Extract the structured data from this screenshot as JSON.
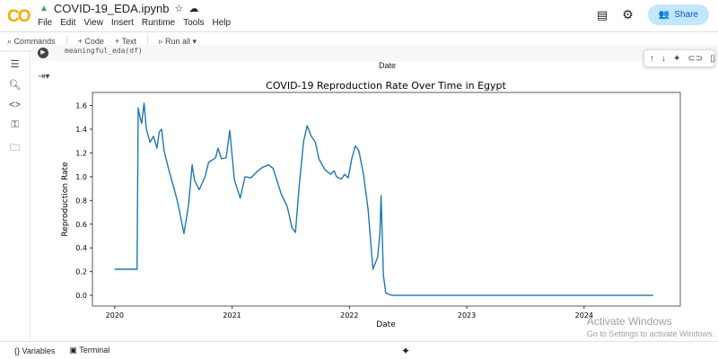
{
  "app": {
    "logo": "CO",
    "file_name": "COVID-19_EDA.ipynb",
    "star_icon": "star-icon",
    "cloud_icon": "cloud-icon"
  },
  "menu": [
    "File",
    "Edit",
    "View",
    "Insert",
    "Runtime",
    "Tools",
    "Help"
  ],
  "header": {
    "share_label": "Share"
  },
  "toolbar": {
    "commands": "Commands",
    "add_code": "+ Code",
    "add_text": "+ Text",
    "run_all": "Run all"
  },
  "cell": {
    "code": "meaningful_eda(df)",
    "previous_output_xlabel": "Date"
  },
  "bottom": {
    "variables": "Variables",
    "terminal": "Terminal"
  },
  "watermark": {
    "line1": "Activate Windows",
    "line2": "Go to Settings to activate Windows."
  },
  "chart_data": {
    "type": "line",
    "title": "COVID-19 Reproduction Rate Over Time in Egypt",
    "xlabel": "Date",
    "ylabel": "Reproduction Rate",
    "xlim": [
      2019.81,
      2024.82
    ],
    "ylim": [
      -0.09,
      1.71
    ],
    "xticks": [
      2020,
      2021,
      2022,
      2023,
      2024
    ],
    "yticks": [
      0.0,
      0.2,
      0.4,
      0.6,
      0.8,
      1.0,
      1.2,
      1.4,
      1.6
    ],
    "grid": false,
    "color": "#1f77b4",
    "x": [
      2020.0,
      2020.19,
      2020.2,
      2020.22,
      2020.23,
      2020.25,
      2020.27,
      2020.3,
      2020.33,
      2020.36,
      2020.38,
      2020.4,
      2020.42,
      2020.46,
      2020.5,
      2020.53,
      2020.55,
      2020.59,
      2020.63,
      2020.66,
      2020.68,
      2020.72,
      2020.77,
      2020.8,
      2020.86,
      2020.88,
      2020.91,
      2020.95,
      2020.98,
      2021.02,
      2021.07,
      2021.11,
      2021.16,
      2021.21,
      2021.26,
      2021.31,
      2021.35,
      2021.42,
      2021.47,
      2021.51,
      2021.54,
      2021.57,
      2021.61,
      2021.64,
      2021.67,
      2021.71,
      2021.74,
      2021.79,
      2021.84,
      2021.87,
      2021.89,
      2021.93,
      2021.96,
      2021.99,
      2022.02,
      2022.05,
      2022.08,
      2022.12,
      2022.16,
      2022.2,
      2022.24,
      2022.26,
      2022.27,
      2022.29,
      2022.31,
      2022.36,
      2024.59
    ],
    "y": [
      0.22,
      0.22,
      1.58,
      1.48,
      1.45,
      1.62,
      1.4,
      1.29,
      1.34,
      1.24,
      1.38,
      1.4,
      1.22,
      1.06,
      0.92,
      0.81,
      0.72,
      0.52,
      0.77,
      1.1,
      0.97,
      0.89,
      1.0,
      1.12,
      1.16,
      1.24,
      1.15,
      1.16,
      1.39,
      0.97,
      0.82,
      1.0,
      0.99,
      1.04,
      1.08,
      1.1,
      1.07,
      0.85,
      0.75,
      0.57,
      0.53,
      0.9,
      1.3,
      1.43,
      1.35,
      1.29,
      1.15,
      1.06,
      1.02,
      1.05,
      1.0,
      0.98,
      1.02,
      0.99,
      1.15,
      1.26,
      1.22,
      1.02,
      0.72,
      0.22,
      0.32,
      0.52,
      0.84,
      0.17,
      0.02,
      0.0,
      0.0
    ]
  }
}
